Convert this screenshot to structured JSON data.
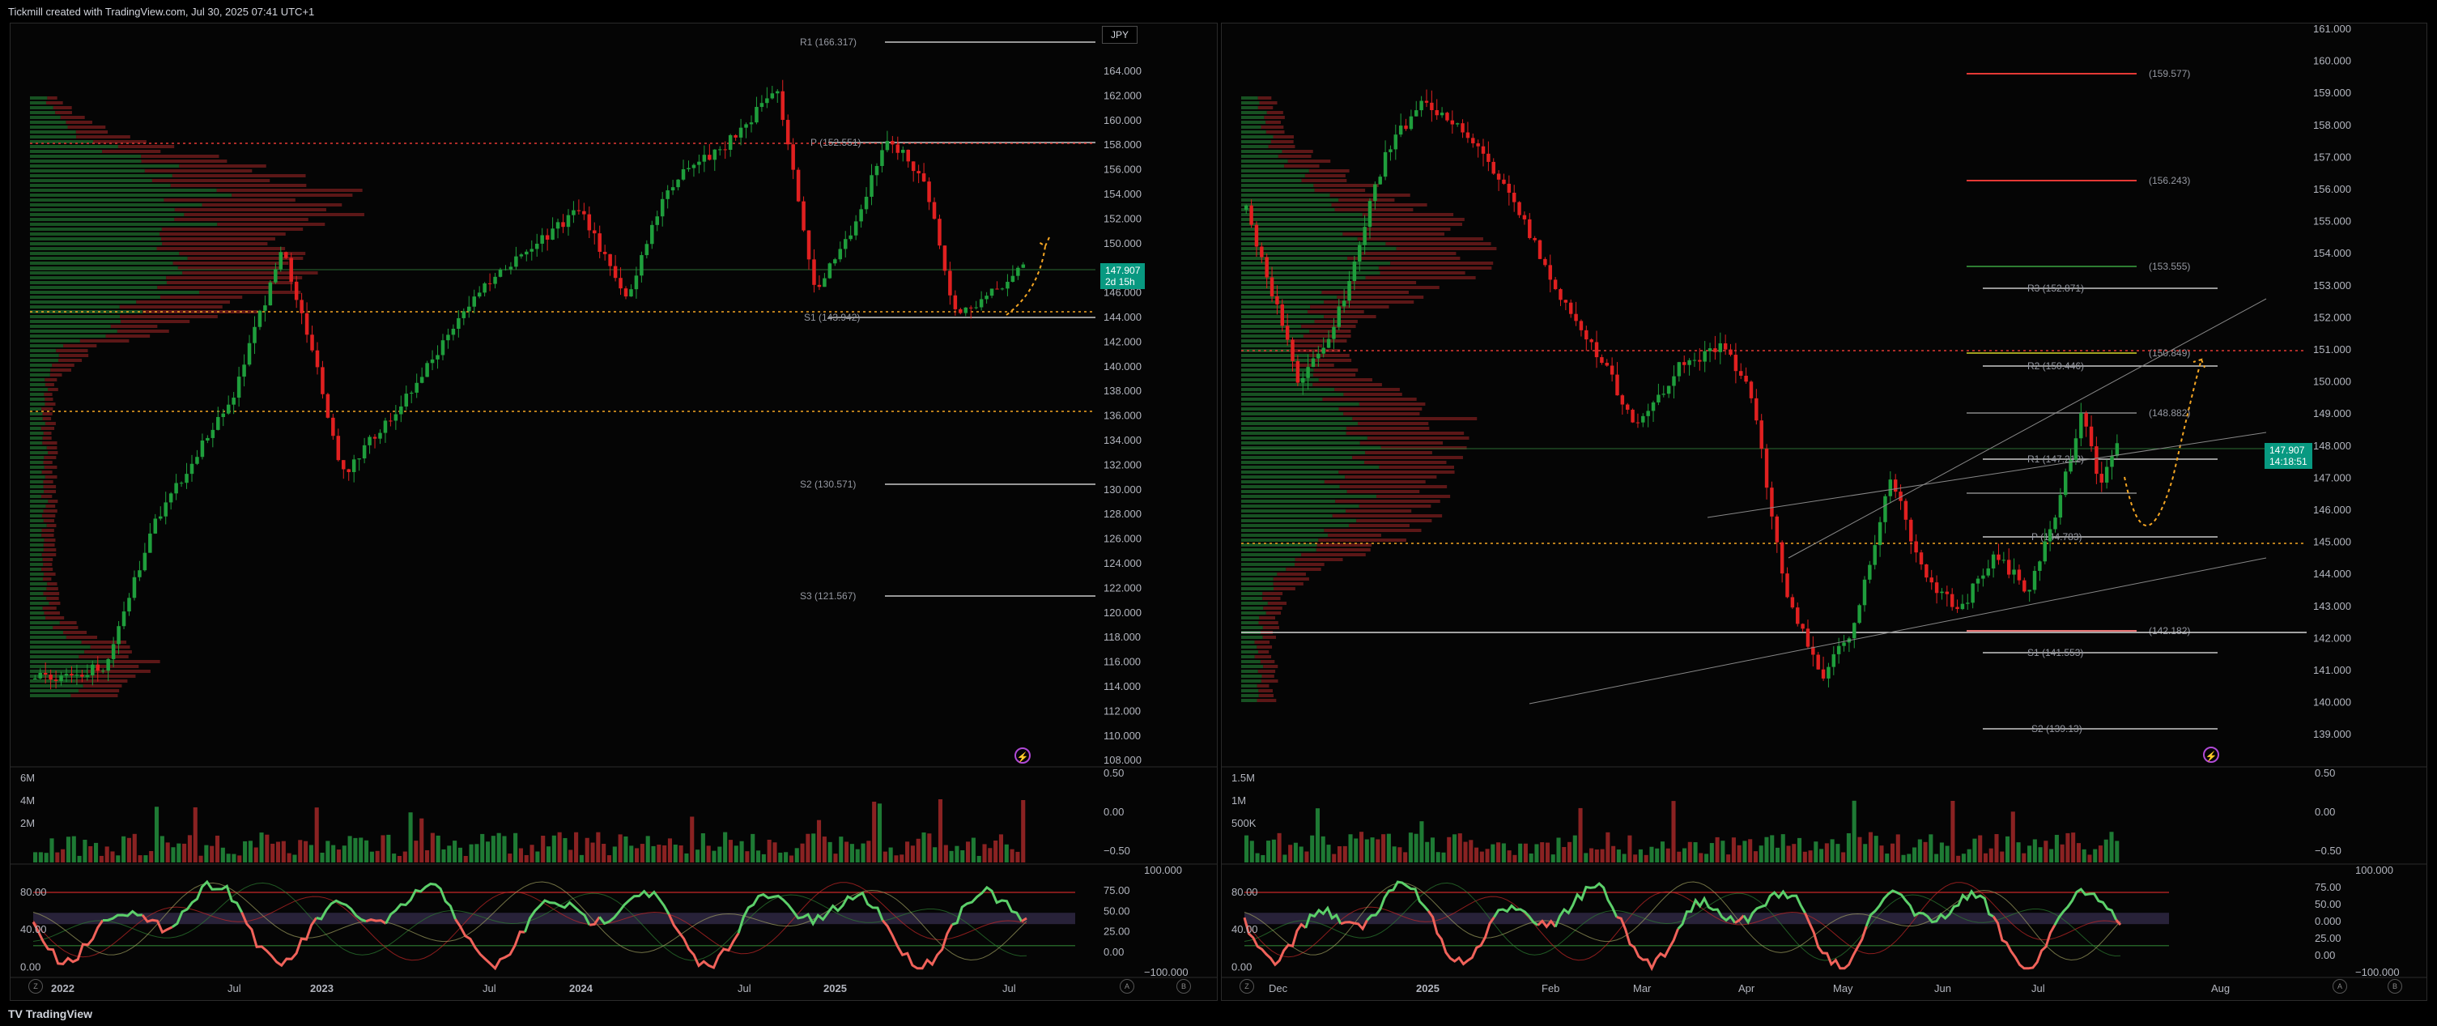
{
  "header": {
    "title": "Tickmill created with TradingView.com, Jul 30, 2025 07:41 UTC+1"
  },
  "footer": {
    "brand": "TradingView",
    "logo": "TV"
  },
  "colors": {
    "up": "#1f9e3c",
    "down": "#e02020",
    "pivot": "#c8c8c8",
    "dotted_red": "#e53935",
    "dotted_orange": "#f5a623",
    "badge": "#089981"
  },
  "left_chart": {
    "currency_badge": "JPY",
    "price_tag": {
      "price": "147.907",
      "countdown": "2d 15h"
    },
    "price_axis": [
      "164.000",
      "162.000",
      "160.000",
      "158.000",
      "156.000",
      "154.000",
      "152.000",
      "150.000",
      "148.000",
      "146.000",
      "144.000",
      "142.000",
      "140.000",
      "138.000",
      "136.000",
      "134.000",
      "132.000",
      "130.000",
      "128.000",
      "126.000",
      "124.000",
      "122.000",
      "120.000",
      "118.000",
      "116.000",
      "114.000",
      "112.000",
      "110.000",
      "108.000"
    ],
    "pivot_labels": {
      "r1": "R1 (166.317)",
      "p": "P (152.551)",
      "s1": "S1 (143.942)",
      "s2": "S2 (130.571)",
      "s3": "S3 (121.567)"
    },
    "time_axis": [
      "2022",
      "Jul",
      "2023",
      "Jul",
      "2024",
      "Jul",
      "2025",
      "Jul"
    ],
    "volume_axis": [
      "6M",
      "4M",
      "2M"
    ],
    "volume_right_axis": [
      "0.50",
      "0.00",
      "−0.50"
    ],
    "osc_axis": [
      "80.00",
      "40.00",
      "0.00"
    ],
    "osc_right_axis": [
      "100.000",
      "75.00",
      "50.00",
      "25.00",
      "0.00",
      "−100.000"
    ],
    "corner_buttons": {
      "left": "Z",
      "a": "A",
      "b": "B"
    }
  },
  "right_chart": {
    "price_tag": {
      "price": "147.907",
      "countdown": "14:18:51"
    },
    "price_axis": [
      "161.000",
      "160.000",
      "159.000",
      "158.000",
      "157.000",
      "156.000",
      "155.000",
      "154.000",
      "153.000",
      "152.000",
      "151.000",
      "150.000",
      "149.000",
      "148.000",
      "147.000",
      "146.000",
      "145.000",
      "144.000",
      "143.000",
      "142.000",
      "141.000",
      "140.000",
      "139.000"
    ],
    "level_labels": {
      "l1": "(159.577)",
      "l2": "(156.243)",
      "l3": "(153.555)",
      "r3": "R3 (152.871)",
      "l4": "(150.849)",
      "r2": "R2 (150.446)",
      "l5": "(148.882)",
      "r1": "R1 (147.212)",
      "p": "P (144.783)",
      "l6": "(142.182)",
      "s1": "S1 (141.553)",
      "s2": "S2 (139.13)"
    },
    "time_axis": [
      "Dec",
      "2025",
      "Feb",
      "Mar",
      "Apr",
      "May",
      "Jun",
      "Jul",
      "Aug"
    ],
    "volume_axis": [
      "1.5M",
      "1M",
      "500K"
    ],
    "volume_right_axis": [
      "0.50",
      "0.00",
      "−0.50"
    ],
    "osc_axis": [
      "80.00",
      "40.00",
      "0.00"
    ],
    "osc_right_axis": [
      "100.000",
      "75.00",
      "50.00",
      "0.000",
      "25.00",
      "0.00",
      "−100.000"
    ],
    "corner_buttons": {
      "left": "Z",
      "a": "A",
      "b": "B"
    }
  }
}
